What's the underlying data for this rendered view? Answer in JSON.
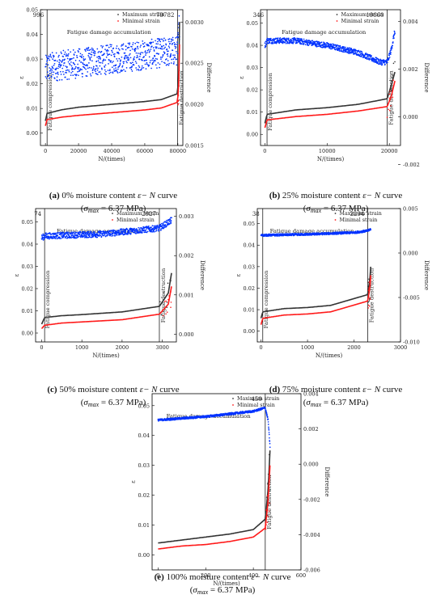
{
  "figure": {
    "legend": {
      "max_label": "Maximum strain",
      "min_label": "Minimal strain"
    },
    "series_colors": {
      "max": "#333333",
      "min": "#ff1a1a",
      "diff": "#0033ff"
    },
    "common_texts": {
      "y_label": "ε",
      "y2_label": "Difference",
      "x_label": "N/(times)",
      "zone_compression": "Fatigue compression",
      "zone_accumulation": "Fatigue damage accumulation",
      "zone_destruction": "Fatigue destruction",
      "caption_curve_word": "curve",
      "caption_sigma_sub": "max",
      "caption_sigma_value": "= 6.37 MPa"
    }
  },
  "captions": [
    {
      "letter": "(a)",
      "text": "0% moisture content",
      "formula": "ε− N"
    },
    {
      "letter": "(b)",
      "text": "25% moisture content",
      "formula": "ε− N"
    },
    {
      "letter": "(c)",
      "text": "50% moisture content",
      "formula": "ε− N"
    },
    {
      "letter": "(d)",
      "text": "75% moisture content",
      "formula": "ε− N"
    },
    {
      "letter": "(e)",
      "text": "100% moisture content",
      "formula": "ε− N"
    }
  ],
  "chart_data": [
    {
      "type": "scatter",
      "panel": "a",
      "xlabel": "N/(times)",
      "ylabel": "ε",
      "y2label": "Difference",
      "xlim": [
        -3000,
        83000
      ],
      "xticks": [
        0,
        20000,
        40000,
        60000,
        80000
      ],
      "ylim": [
        -0.005,
        0.05
      ],
      "yticks": [
        0.0,
        0.01,
        0.02,
        0.03,
        0.04,
        0.05
      ],
      "y2lim": [
        0.0015,
        0.00315
      ],
      "y2ticks": [
        0.0015,
        0.002,
        0.0025,
        0.003
      ],
      "annotations": {
        "n1": "996",
        "n2": "79782"
      },
      "n1": 996,
      "n2": 79782,
      "n_end": 81000,
      "series": [
        {
          "name": "Maximum strain",
          "x": [
            0,
            996,
            10000,
            20000,
            40000,
            60000,
            70000,
            79782,
            80500,
            81000
          ],
          "y": [
            0.005,
            0.008,
            0.0095,
            0.0105,
            0.0117,
            0.0128,
            0.0136,
            0.016,
            0.025,
            0.045
          ]
        },
        {
          "name": "Minimal strain",
          "x": [
            0,
            996,
            10000,
            20000,
            40000,
            60000,
            70000,
            79782,
            80500,
            81000
          ],
          "y": [
            0.003,
            0.0055,
            0.0065,
            0.0072,
            0.0083,
            0.0094,
            0.0102,
            0.0125,
            0.02,
            0.036
          ]
        },
        {
          "name": "Difference",
          "band": true,
          "x": [
            0,
            996,
            40000,
            79782,
            81000
          ],
          "y": [
            0.0024,
            0.00245,
            0.00255,
            0.00265,
            0.003
          ],
          "spread": 0.00018
        }
      ]
    },
    {
      "type": "scatter",
      "panel": "b",
      "xlabel": "N/(times)",
      "ylabel": "ε",
      "y2label": "Difference",
      "xlim": [
        -700,
        21800
      ],
      "xticks": [
        0,
        10000,
        20000
      ],
      "ylim": [
        -0.005,
        0.056
      ],
      "yticks": [
        0.0,
        0.01,
        0.02,
        0.03,
        0.04,
        0.05
      ],
      "y2lim": [
        -0.0012,
        0.0045
      ],
      "y2ticks": [
        -0.002,
        0.0,
        0.002,
        0.004
      ],
      "annotations": {
        "n1": "346",
        "n2": "19660"
      },
      "n1": 346,
      "n2": 19660,
      "n_end": 20900,
      "series": [
        {
          "name": "Maximum strain",
          "x": [
            0,
            346,
            5000,
            10000,
            15000,
            19660,
            20300,
            20900
          ],
          "y": [
            0.005,
            0.009,
            0.011,
            0.012,
            0.0135,
            0.016,
            0.022,
            0.028
          ]
        },
        {
          "name": "Minimal strain",
          "x": [
            0,
            346,
            5000,
            10000,
            15000,
            19660,
            20300,
            20900
          ],
          "y": [
            0.003,
            0.0065,
            0.008,
            0.009,
            0.0105,
            0.0125,
            0.017,
            0.024
          ]
        },
        {
          "name": "Difference",
          "band": true,
          "x": [
            0,
            346,
            5000,
            10000,
            15000,
            18500,
            19660,
            20300,
            20900
          ],
          "y": [
            0.003,
            0.0032,
            0.0032,
            0.003,
            0.0027,
            0.0023,
            0.0023,
            0.0028,
            0.0036
          ],
          "spread": 0.00012
        }
      ]
    },
    {
      "type": "scatter",
      "panel": "c",
      "xlabel": "N/(times)",
      "ylabel": "ε",
      "y2label": "Difference",
      "xlim": [
        -150,
        3350
      ],
      "xticks": [
        0,
        1000,
        2000,
        3000
      ],
      "ylim": [
        -0.004,
        0.056
      ],
      "yticks": [
        0.0,
        0.01,
        0.02,
        0.03,
        0.04,
        0.05
      ],
      "y2lim": [
        -0.0002,
        0.0032
      ],
      "y2ticks": [
        0.0,
        0.001,
        0.002,
        0.003
      ],
      "annotations": {
        "n1": "74",
        "n2": "2927"
      },
      "n1": 74,
      "n2": 2927,
      "n_end": 3230,
      "series": [
        {
          "name": "Maximum strain",
          "x": [
            0,
            74,
            500,
            1000,
            2000,
            2927,
            3150,
            3230
          ],
          "y": [
            0.004,
            0.007,
            0.0078,
            0.0083,
            0.0095,
            0.012,
            0.018,
            0.027
          ]
        },
        {
          "name": "Minimal strain",
          "x": [
            0,
            74,
            500,
            1000,
            2000,
            2927,
            3150,
            3230
          ],
          "y": [
            0.002,
            0.0035,
            0.0045,
            0.005,
            0.006,
            0.0085,
            0.013,
            0.021
          ]
        },
        {
          "name": "Difference",
          "band": true,
          "x": [
            0,
            74,
            1500,
            2927,
            3150,
            3230
          ],
          "y": [
            0.00245,
            0.0025,
            0.00255,
            0.0027,
            0.00285,
            0.0029
          ],
          "spread": 8e-05
        }
      ]
    },
    {
      "type": "scatter",
      "panel": "d",
      "xlabel": "N/(times)",
      "ylabel": "ε",
      "y2label": "Difference",
      "xlim": [
        -80,
        3000
      ],
      "xticks": [
        0,
        1000,
        2000,
        3000
      ],
      "ylim": [
        -0.005,
        0.057
      ],
      "yticks": [
        0.0,
        0.01,
        0.02,
        0.03,
        0.04,
        0.05
      ],
      "y2lim": [
        -0.01,
        0.005
      ],
      "y2ticks": [
        -0.01,
        -0.005,
        0.0,
        0.005
      ],
      "annotations": {
        "n1": "38",
        "n2": "2294"
      },
      "n1": 38,
      "n2": 2294,
      "n_end": 2360,
      "series": [
        {
          "name": "Maximum strain",
          "x": [
            0,
            38,
            500,
            1000,
            1500,
            2294,
            2340,
            2360
          ],
          "y": [
            0.006,
            0.009,
            0.0105,
            0.011,
            0.012,
            0.017,
            0.024,
            0.03
          ]
        },
        {
          "name": "Minimal strain",
          "x": [
            0,
            38,
            500,
            1000,
            1500,
            2294,
            2340,
            2360
          ],
          "y": [
            0.003,
            0.006,
            0.0075,
            0.008,
            0.009,
            0.014,
            0.02,
            0.026
          ]
        },
        {
          "name": "Difference",
          "band": true,
          "x": [
            0,
            38,
            1000,
            2000,
            2294,
            2360
          ],
          "y": [
            0.002,
            0.002,
            0.0021,
            0.0023,
            0.0025,
            0.0027
          ],
          "spread": 0.00012
        }
      ]
    },
    {
      "type": "scatter",
      "panel": "e",
      "xlabel": "N/(times)",
      "ylabel": "ε",
      "y2label": "Difference",
      "xlim": [
        -25,
        600
      ],
      "xticks": [
        0,
        200,
        400,
        600
      ],
      "ylim": [
        -0.005,
        0.054
      ],
      "yticks": [
        0.0,
        0.01,
        0.02,
        0.03,
        0.04,
        0.05
      ],
      "y2lim": [
        -0.006,
        0.004
      ],
      "y2ticks": [
        -0.006,
        -0.004,
        -0.002,
        0.0,
        0.002,
        0.004
      ],
      "annotations": {
        "n1": "",
        "n2": "450"
      },
      "n1": 0,
      "n2": 450,
      "n_end": 470,
      "series": [
        {
          "name": "Maximum strain",
          "x": [
            0,
            100,
            200,
            300,
            400,
            450,
            462,
            470
          ],
          "y": [
            0.004,
            0.005,
            0.006,
            0.007,
            0.0085,
            0.012,
            0.022,
            0.035
          ]
        },
        {
          "name": "Minimal strain",
          "x": [
            0,
            100,
            200,
            300,
            400,
            450,
            462,
            470
          ],
          "y": [
            0.002,
            0.003,
            0.0035,
            0.0045,
            0.006,
            0.009,
            0.018,
            0.03
          ]
        },
        {
          "name": "Difference",
          "band": true,
          "x": [
            0,
            200,
            400,
            450,
            462,
            470
          ],
          "y": [
            0.0025,
            0.0027,
            0.003,
            0.0032,
            0.0025,
            0.001
          ],
          "spread": 6e-05
        }
      ]
    }
  ]
}
